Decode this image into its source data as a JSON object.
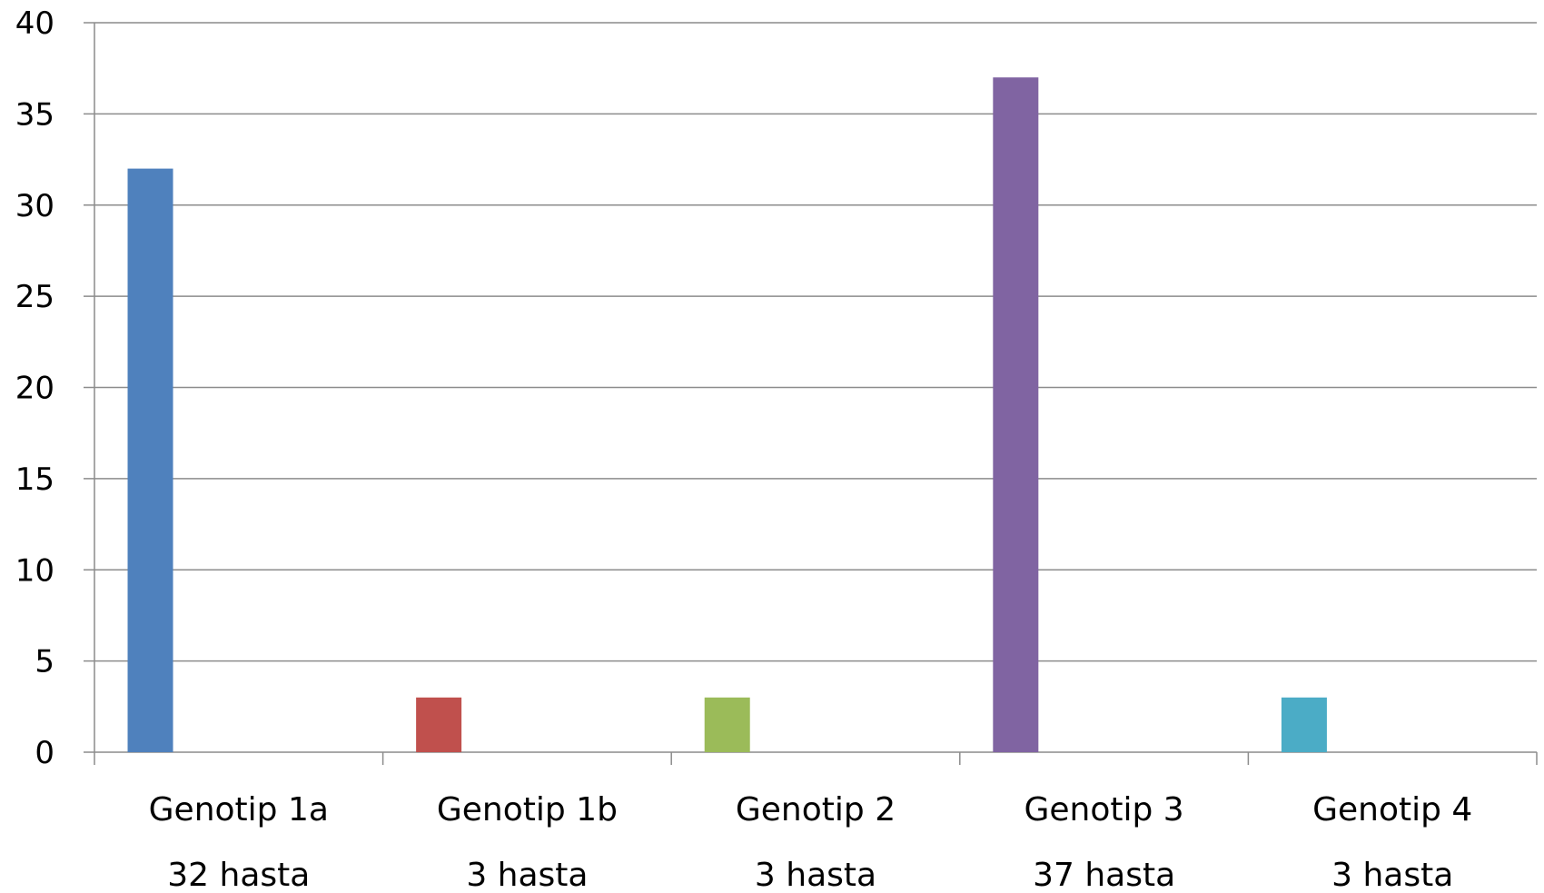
{
  "chart_data": {
    "type": "bar",
    "categories": [
      "Genotip 1a",
      "Genotip 1b",
      "Genotip 2",
      "Genotip 3",
      "Genotip 4"
    ],
    "category_sublabels": [
      "32 hasta",
      "3 hasta",
      "3 hasta",
      "37 hasta",
      "3 hasta"
    ],
    "values": [
      32,
      3,
      3,
      37,
      3
    ],
    "bar_colors": [
      "#4f81bd",
      "#c0504d",
      "#9bbb59",
      "#8064a2",
      "#4bacc6"
    ],
    "ylim": [
      0,
      40
    ],
    "yticks": [
      "0",
      "5",
      "10",
      "15",
      "20",
      "25",
      "30",
      "35",
      "40"
    ],
    "grid": true,
    "title": "",
    "xlabel": "",
    "ylabel": ""
  }
}
